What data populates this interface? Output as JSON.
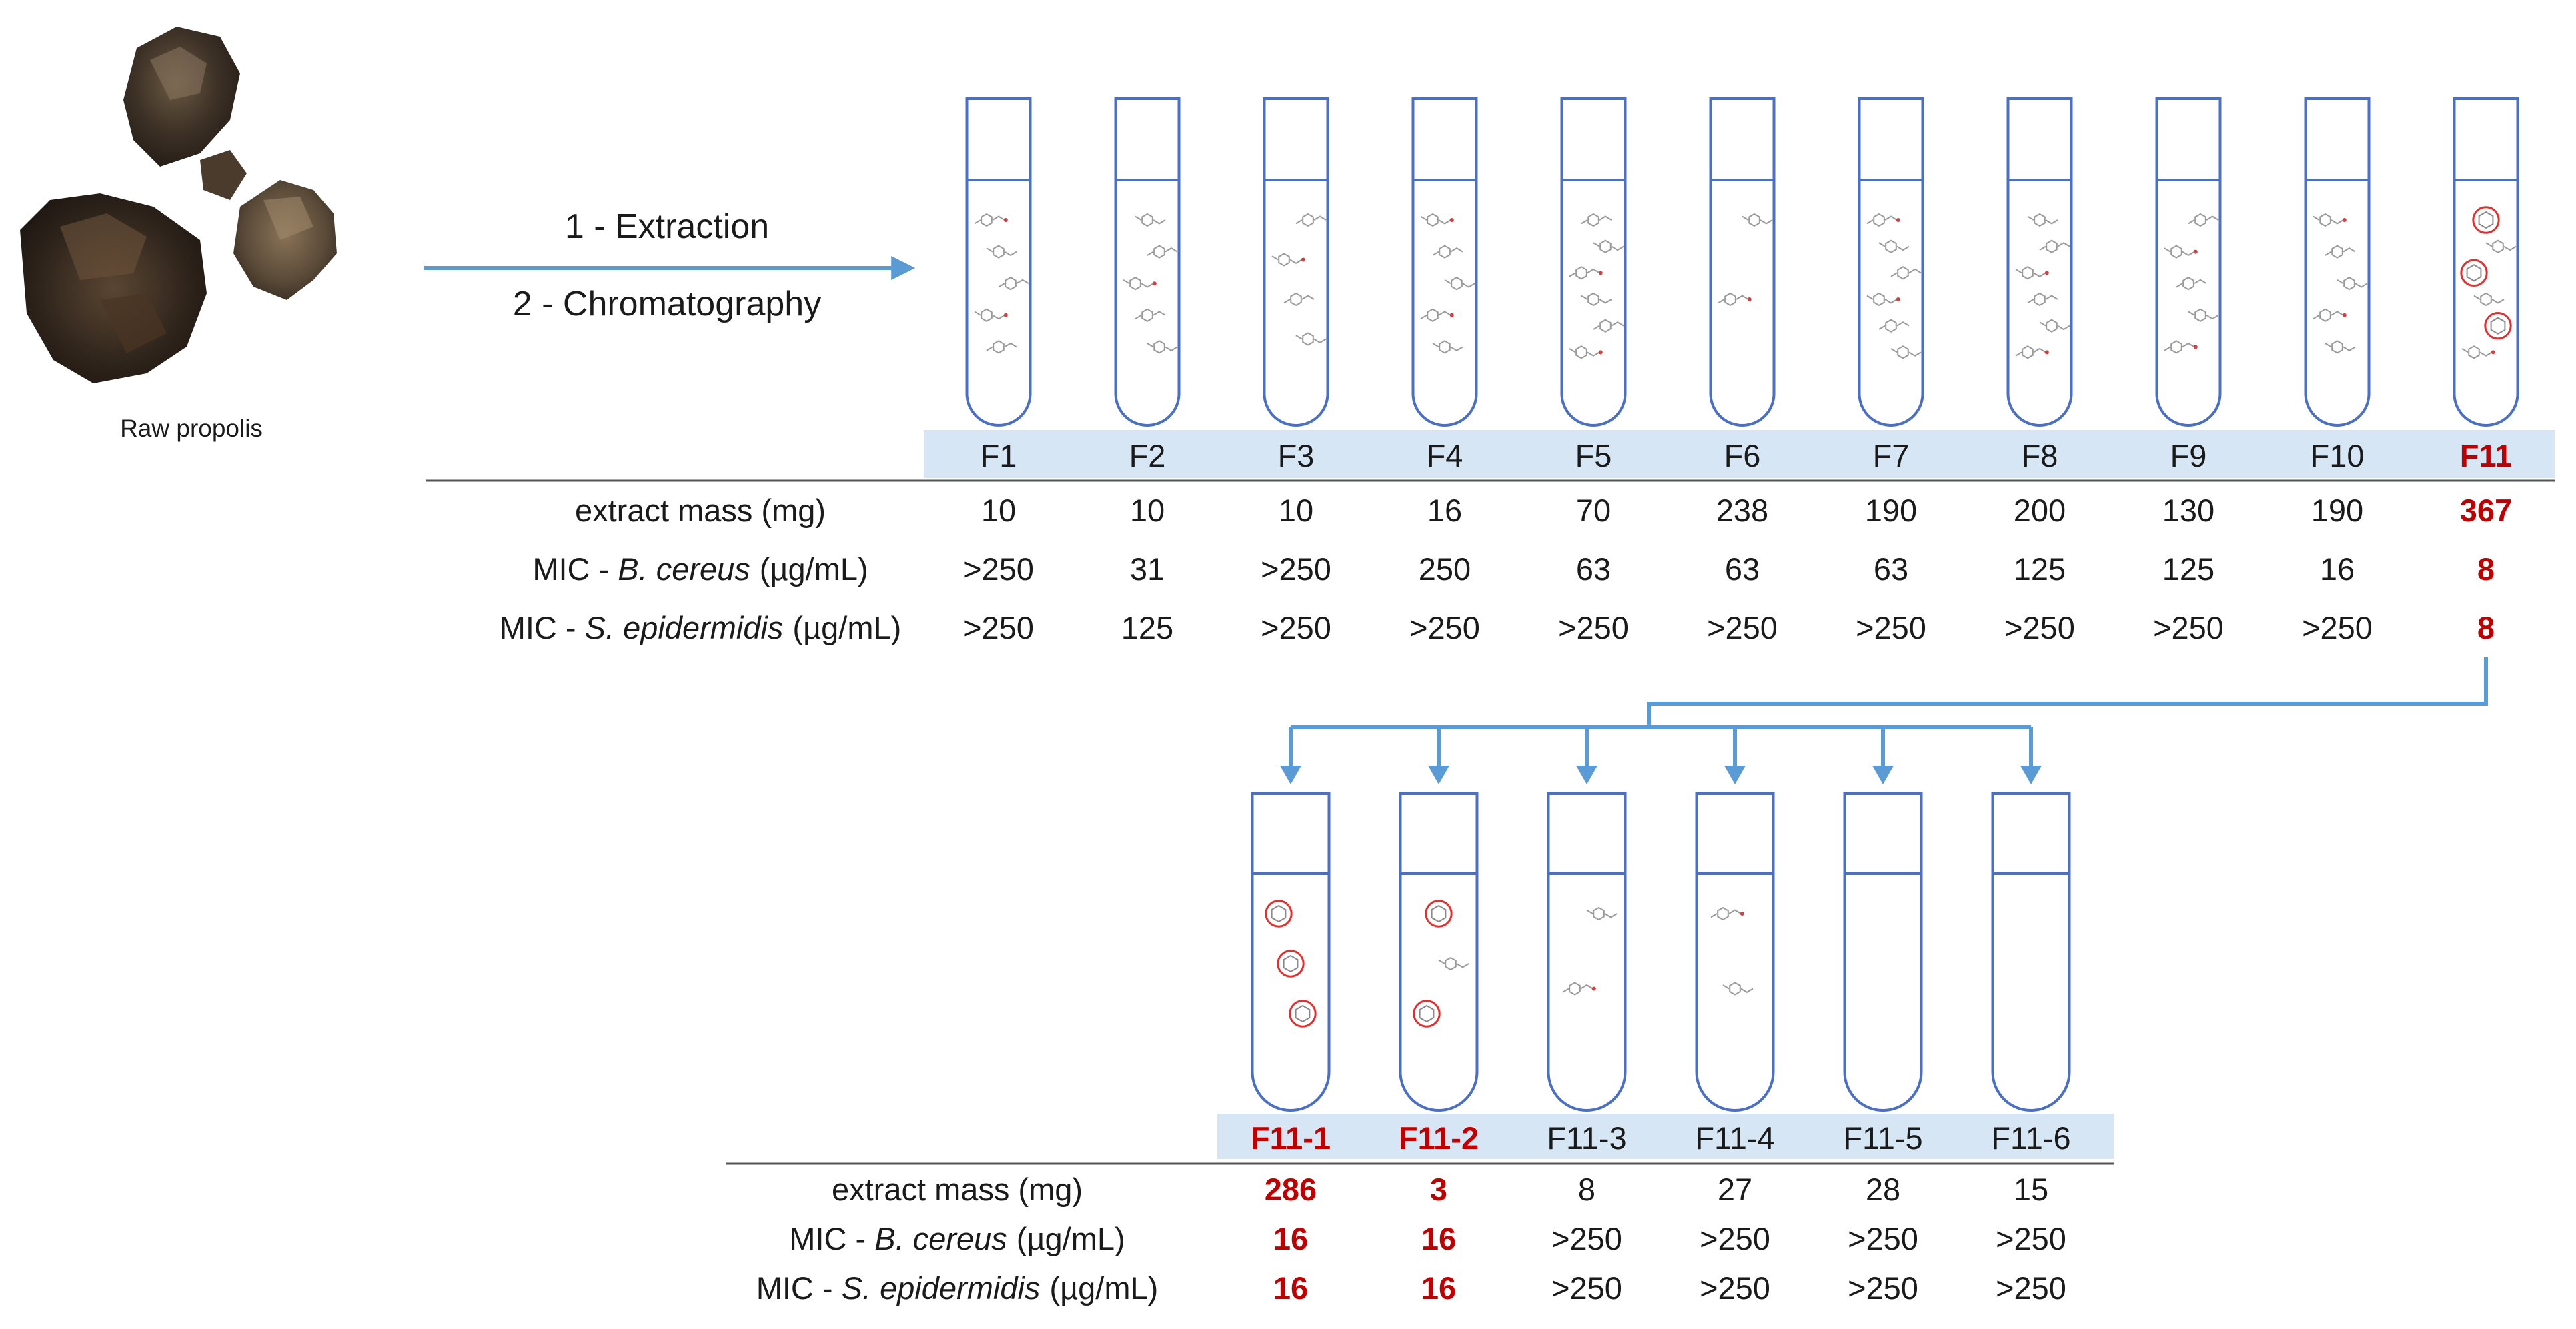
{
  "source": {
    "label": "Raw propolis"
  },
  "process_steps": [
    "1 - Extraction",
    "2 - Chromatography"
  ],
  "colors": {
    "tube_stroke": "#4a6fc4",
    "arrow": "#5b9bd5",
    "label_band": "#d6e6f5",
    "highlight": "#c00000",
    "molecule_hit": "#e03030"
  },
  "row_labels": [
    {
      "prefix": "extract mass (mg)",
      "species": "",
      "unit": ""
    },
    {
      "prefix": "MIC - ",
      "species": "B. cereus",
      "unit": "(µg/mL)"
    },
    {
      "prefix": "MIC - ",
      "species": "S. epidermidis",
      "unit": "(µg/mL)"
    }
  ],
  "table1": {
    "fractions": [
      {
        "name": "F1",
        "mass": "10",
        "mic_bc": ">250",
        "mic_se": ">250",
        "highlight": false
      },
      {
        "name": "F2",
        "mass": "10",
        "mic_bc": "31",
        "mic_se": "125",
        "highlight": false
      },
      {
        "name": "F3",
        "mass": "10",
        "mic_bc": ">250",
        "mic_se": ">250",
        "highlight": false
      },
      {
        "name": "F4",
        "mass": "16",
        "mic_bc": "250",
        "mic_se": ">250",
        "highlight": false
      },
      {
        "name": "F5",
        "mass": "70",
        "mic_bc": "63",
        "mic_se": ">250",
        "highlight": false
      },
      {
        "name": "F6",
        "mass": "238",
        "mic_bc": "63",
        "mic_se": ">250",
        "highlight": false
      },
      {
        "name": "F7",
        "mass": "190",
        "mic_bc": "63",
        "mic_se": ">250",
        "highlight": false
      },
      {
        "name": "F8",
        "mass": "200",
        "mic_bc": "125",
        "mic_se": ">250",
        "highlight": false
      },
      {
        "name": "F9",
        "mass": "130",
        "mic_bc": "125",
        "mic_se": ">250",
        "highlight": false
      },
      {
        "name": "F10",
        "mass": "190",
        "mic_bc": "16",
        "mic_se": ">250",
        "highlight": false
      },
      {
        "name": "F11",
        "mass": "367",
        "mic_bc": "8",
        "mic_se": "8",
        "highlight": true
      }
    ]
  },
  "table2": {
    "fractions": [
      {
        "name": "F11-1",
        "mass": "286",
        "mic_bc": "16",
        "mic_se": "16",
        "highlight": true
      },
      {
        "name": "F11-2",
        "mass": "3",
        "mic_bc": "16",
        "mic_se": "16",
        "highlight": true
      },
      {
        "name": "F11-3",
        "mass": "8",
        "mic_bc": ">250",
        "mic_se": ">250",
        "highlight": false
      },
      {
        "name": "F11-4",
        "mass": "27",
        "mic_bc": ">250",
        "mic_se": ">250",
        "highlight": false
      },
      {
        "name": "F11-5",
        "mass": "28",
        "mic_bc": ">250",
        "mic_se": ">250",
        "highlight": false
      },
      {
        "name": "F11-6",
        "mass": "15",
        "mic_bc": ">250",
        "mic_se": ">250",
        "highlight": false
      }
    ]
  }
}
